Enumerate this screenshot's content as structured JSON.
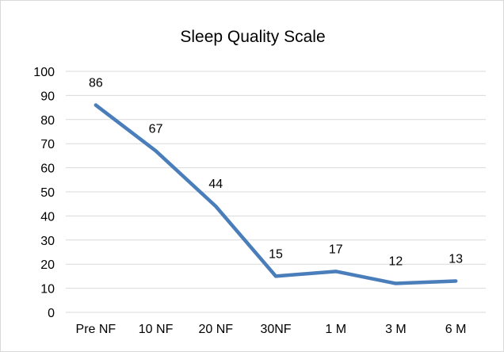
{
  "chart_data": {
    "type": "line",
    "title": "Sleep Quality Scale",
    "xlabel": "",
    "ylabel": "",
    "categories": [
      "Pre NF",
      "10 NF",
      "20 NF",
      "30NF",
      "1 M",
      "3 M",
      "6 M"
    ],
    "series": [
      {
        "values": [
          86,
          67,
          44,
          15,
          17,
          12,
          13
        ],
        "color": "#4a7ebb"
      }
    ],
    "ylim": [
      0,
      100
    ],
    "yticks": [
      0,
      10,
      20,
      30,
      40,
      50,
      60,
      70,
      80,
      90,
      100
    ],
    "grid": true,
    "gridColor": "#d9d9d9",
    "legend": "none",
    "dataLabels": true
  }
}
